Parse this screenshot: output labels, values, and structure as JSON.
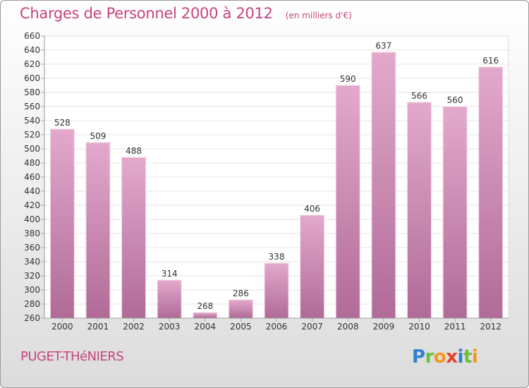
{
  "title": "Charges de Personnel 2000 à 2012",
  "subtitle": "(en milliers d'€)",
  "town": "PUGET-THéNIERS",
  "logo": {
    "letters": [
      "P",
      "r",
      "o",
      "x",
      "i",
      "t",
      "i"
    ],
    "colors": [
      "#2f7fd2",
      "#6dbf3a",
      "#f29a1a",
      "#e8402e",
      "#2f7fd2",
      "#6dbf3a",
      "#f29a1a"
    ]
  },
  "colors": {
    "bar_top": "#e3a9cc",
    "bar_bottom": "#b06b97",
    "text_accent": "#c8437e",
    "axis": "#555555",
    "grid": "#dddddd"
  },
  "chart_data": {
    "type": "bar",
    "categories": [
      "2000",
      "2001",
      "2002",
      "2003",
      "2004",
      "2005",
      "2006",
      "2007",
      "2008",
      "2009",
      "2010",
      "2011",
      "2012"
    ],
    "values": [
      528,
      509,
      488,
      314,
      268,
      286,
      338,
      406,
      590,
      637,
      566,
      560,
      616
    ],
    "ylim": [
      260,
      660
    ],
    "yticks": [
      260,
      280,
      300,
      320,
      340,
      360,
      380,
      400,
      420,
      440,
      460,
      480,
      500,
      520,
      540,
      560,
      580,
      600,
      620,
      640,
      660
    ],
    "xlabel": "",
    "ylabel": "",
    "grid": true,
    "data_labels": true
  }
}
